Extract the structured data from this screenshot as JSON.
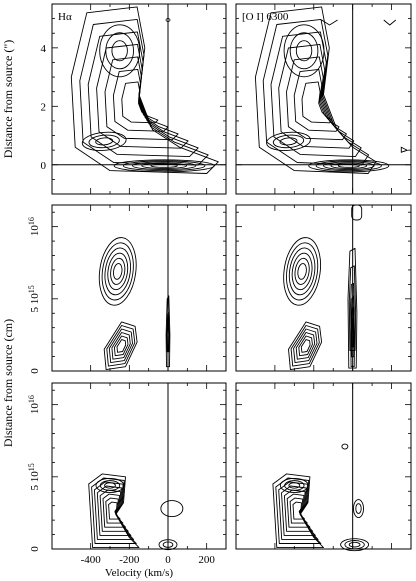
{
  "chart_data": {
    "type": "contour",
    "x_axis": {
      "label": "Velocity (km/s)",
      "range": [
        -600,
        300
      ],
      "ticks": [
        -400,
        -200,
        0,
        200
      ]
    },
    "y_axis_top": {
      "label": "Distance from source (\")",
      "range": [
        -1,
        5.5
      ],
      "ticks": [
        0,
        2,
        4
      ]
    },
    "y_axis_model": {
      "label": "Distance from source (cm)",
      "range": [
        0,
        1.15e+16
      ],
      "tick_labels": [
        "0",
        "5 10^15",
        "10^16"
      ]
    },
    "panel_labels": [
      "Hα",
      "[O I] 6300"
    ],
    "panels": [
      {
        "row": 1,
        "col": 1,
        "line": "Hα"
      },
      {
        "row": 1,
        "col": 2,
        "line": "[O I] 6300"
      },
      {
        "row": 2,
        "col": 1,
        "line": "Hα"
      },
      {
        "row": 2,
        "col": 2,
        "line": "[O I] 6300"
      },
      {
        "row": 3,
        "col": 1,
        "line": "Hα"
      },
      {
        "row": 3,
        "col": 2,
        "line": "[O I] 6300"
      }
    ]
  }
}
